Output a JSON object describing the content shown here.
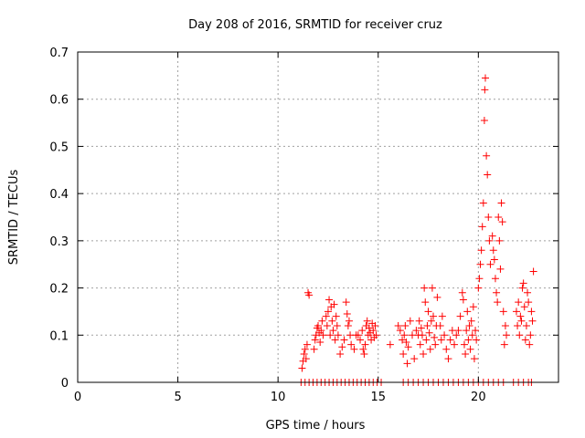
{
  "chart_data": {
    "type": "scatter",
    "title": "Day 208 of 2016, SRMTID for receiver cruz",
    "xlabel": "GPS time / hours",
    "ylabel": "SRMTID / TECUs",
    "xlim": [
      0,
      24
    ],
    "ylim": [
      0,
      0.7
    ],
    "xticks": [
      0,
      5,
      10,
      15,
      20
    ],
    "xtick_labels": [
      "0",
      "5",
      "10",
      "15",
      "20"
    ],
    "yticks": [
      0,
      0.1,
      0.2,
      0.3,
      0.4,
      0.5,
      0.6,
      0.7
    ],
    "ytick_labels": [
      "0",
      "0.1",
      "0.2",
      "0.3",
      "0.4",
      "0.5",
      "0.6",
      "0.7"
    ],
    "grid": true,
    "marker": "plus",
    "colors": {
      "points": "#ff0000",
      "grid": "#a0a0a0",
      "axes": "#000000"
    },
    "series": [
      {
        "name": "SRMTID",
        "points": [
          [
            11.2,
            0.03
          ],
          [
            11.25,
            0.045
          ],
          [
            11.3,
            0.06
          ],
          [
            11.35,
            0.07
          ],
          [
            11.4,
            0.05
          ],
          [
            11.45,
            0.08
          ],
          [
            11.5,
            0.19
          ],
          [
            11.55,
            0.185
          ],
          [
            11.8,
            0.07
          ],
          [
            11.85,
            0.09
          ],
          [
            11.9,
            0.1
          ],
          [
            11.95,
            0.115
          ],
          [
            12.0,
            0.12
          ],
          [
            12.05,
            0.105
          ],
          [
            12.1,
            0.085
          ],
          [
            12.15,
            0.11
          ],
          [
            12.2,
            0.13
          ],
          [
            12.25,
            0.1
          ],
          [
            12.4,
            0.14
          ],
          [
            12.45,
            0.12
          ],
          [
            12.5,
            0.15
          ],
          [
            12.55,
            0.175
          ],
          [
            12.6,
            0.1
          ],
          [
            12.65,
            0.16
          ],
          [
            12.7,
            0.13
          ],
          [
            12.75,
            0.11
          ],
          [
            12.8,
            0.165
          ],
          [
            12.85,
            0.09
          ],
          [
            12.9,
            0.14
          ],
          [
            12.95,
            0.12
          ],
          [
            13.0,
            0.1
          ],
          [
            13.1,
            0.06
          ],
          [
            13.2,
            0.075
          ],
          [
            13.3,
            0.09
          ],
          [
            13.4,
            0.17
          ],
          [
            13.45,
            0.145
          ],
          [
            13.5,
            0.12
          ],
          [
            13.55,
            0.13
          ],
          [
            13.6,
            0.1
          ],
          [
            13.65,
            0.08
          ],
          [
            13.8,
            0.07
          ],
          [
            13.9,
            0.1
          ],
          [
            14.0,
            0.1
          ],
          [
            14.1,
            0.09
          ],
          [
            14.2,
            0.11
          ],
          [
            14.25,
            0.07
          ],
          [
            14.3,
            0.06
          ],
          [
            14.35,
            0.08
          ],
          [
            14.4,
            0.12
          ],
          [
            14.45,
            0.13
          ],
          [
            14.5,
            0.1
          ],
          [
            14.55,
            0.115
          ],
          [
            14.6,
            0.105
          ],
          [
            14.65,
            0.09
          ],
          [
            14.7,
            0.125
          ],
          [
            14.75,
            0.11
          ],
          [
            14.8,
            0.095
          ],
          [
            14.85,
            0.12
          ],
          [
            14.9,
            0.1
          ],
          [
            15.6,
            0.08
          ],
          [
            16.0,
            0.12
          ],
          [
            16.1,
            0.11
          ],
          [
            16.2,
            0.09
          ],
          [
            16.25,
            0.06
          ],
          [
            16.3,
            0.1
          ],
          [
            16.35,
            0.12
          ],
          [
            16.4,
            0.085
          ],
          [
            16.45,
            0.04
          ],
          [
            16.5,
            0.075
          ],
          [
            16.6,
            0.13
          ],
          [
            16.7,
            0.1
          ],
          [
            16.8,
            0.05
          ],
          [
            16.9,
            0.11
          ],
          [
            17.0,
            0.1
          ],
          [
            17.05,
            0.13
          ],
          [
            17.1,
            0.08
          ],
          [
            17.15,
            0.115
          ],
          [
            17.2,
            0.1
          ],
          [
            17.25,
            0.06
          ],
          [
            17.3,
            0.2
          ],
          [
            17.35,
            0.17
          ],
          [
            17.4,
            0.09
          ],
          [
            17.45,
            0.12
          ],
          [
            17.5,
            0.15
          ],
          [
            17.55,
            0.105
          ],
          [
            17.6,
            0.07
          ],
          [
            17.65,
            0.13
          ],
          [
            17.7,
            0.2
          ],
          [
            17.75,
            0.14
          ],
          [
            17.8,
            0.095
          ],
          [
            17.85,
            0.08
          ],
          [
            17.9,
            0.12
          ],
          [
            17.95,
            0.18
          ],
          [
            18.1,
            0.12
          ],
          [
            18.15,
            0.09
          ],
          [
            18.2,
            0.14
          ],
          [
            18.3,
            0.1
          ],
          [
            18.4,
            0.07
          ],
          [
            18.5,
            0.05
          ],
          [
            18.6,
            0.09
          ],
          [
            18.7,
            0.11
          ],
          [
            18.8,
            0.08
          ],
          [
            18.9,
            0.1
          ],
          [
            19.0,
            0.11
          ],
          [
            19.1,
            0.14
          ],
          [
            19.2,
            0.19
          ],
          [
            19.25,
            0.175
          ],
          [
            19.3,
            0.08
          ],
          [
            19.35,
            0.06
          ],
          [
            19.4,
            0.11
          ],
          [
            19.45,
            0.15
          ],
          [
            19.5,
            0.09
          ],
          [
            19.55,
            0.12
          ],
          [
            19.6,
            0.07
          ],
          [
            19.65,
            0.13
          ],
          [
            19.7,
            0.1
          ],
          [
            19.75,
            0.16
          ],
          [
            19.8,
            0.05
          ],
          [
            19.85,
            0.11
          ],
          [
            19.9,
            0.09
          ],
          [
            20.0,
            0.2
          ],
          [
            20.05,
            0.22
          ],
          [
            20.1,
            0.25
          ],
          [
            20.15,
            0.28
          ],
          [
            20.2,
            0.33
          ],
          [
            20.25,
            0.38
          ],
          [
            20.3,
            0.555
          ],
          [
            20.32,
            0.62
          ],
          [
            20.35,
            0.645
          ],
          [
            20.4,
            0.48
          ],
          [
            20.45,
            0.44
          ],
          [
            20.5,
            0.35
          ],
          [
            20.55,
            0.3
          ],
          [
            20.6,
            0.25
          ],
          [
            20.7,
            0.31
          ],
          [
            20.75,
            0.28
          ],
          [
            20.8,
            0.26
          ],
          [
            20.85,
            0.22
          ],
          [
            20.9,
            0.19
          ],
          [
            20.95,
            0.17
          ],
          [
            21.0,
            0.35
          ],
          [
            21.05,
            0.3
          ],
          [
            21.1,
            0.24
          ],
          [
            21.15,
            0.38
          ],
          [
            21.2,
            0.34
          ],
          [
            21.25,
            0.15
          ],
          [
            21.3,
            0.08
          ],
          [
            21.35,
            0.12
          ],
          [
            21.4,
            0.1
          ],
          [
            21.9,
            0.15
          ],
          [
            21.95,
            0.12
          ],
          [
            22.0,
            0.17
          ],
          [
            22.05,
            0.1
          ],
          [
            22.1,
            0.14
          ],
          [
            22.15,
            0.13
          ],
          [
            22.2,
            0.2
          ],
          [
            22.25,
            0.21
          ],
          [
            22.3,
            0.16
          ],
          [
            22.35,
            0.09
          ],
          [
            22.4,
            0.12
          ],
          [
            22.45,
            0.19
          ],
          [
            22.5,
            0.17
          ],
          [
            22.55,
            0.08
          ],
          [
            22.6,
            0.1
          ],
          [
            22.65,
            0.15
          ],
          [
            22.7,
            0.13
          ],
          [
            22.75,
            0.235
          ]
        ]
      }
    ],
    "zero_points_x": [
      11.15,
      11.35,
      11.55,
      11.75,
      11.95,
      12.15,
      12.35,
      12.55,
      12.75,
      12.95,
      13.15,
      13.35,
      13.55,
      13.75,
      13.95,
      14.15,
      14.35,
      14.55,
      14.75,
      14.95,
      15.15,
      16.25,
      16.5,
      16.75,
      17.0,
      17.25,
      17.5,
      17.75,
      18.0,
      18.25,
      18.5,
      18.75,
      19.0,
      19.25,
      19.5,
      19.75,
      20.0,
      20.25,
      20.5,
      20.75,
      21.0,
      21.25,
      21.75,
      22.0,
      22.25,
      22.5,
      22.65
    ]
  }
}
